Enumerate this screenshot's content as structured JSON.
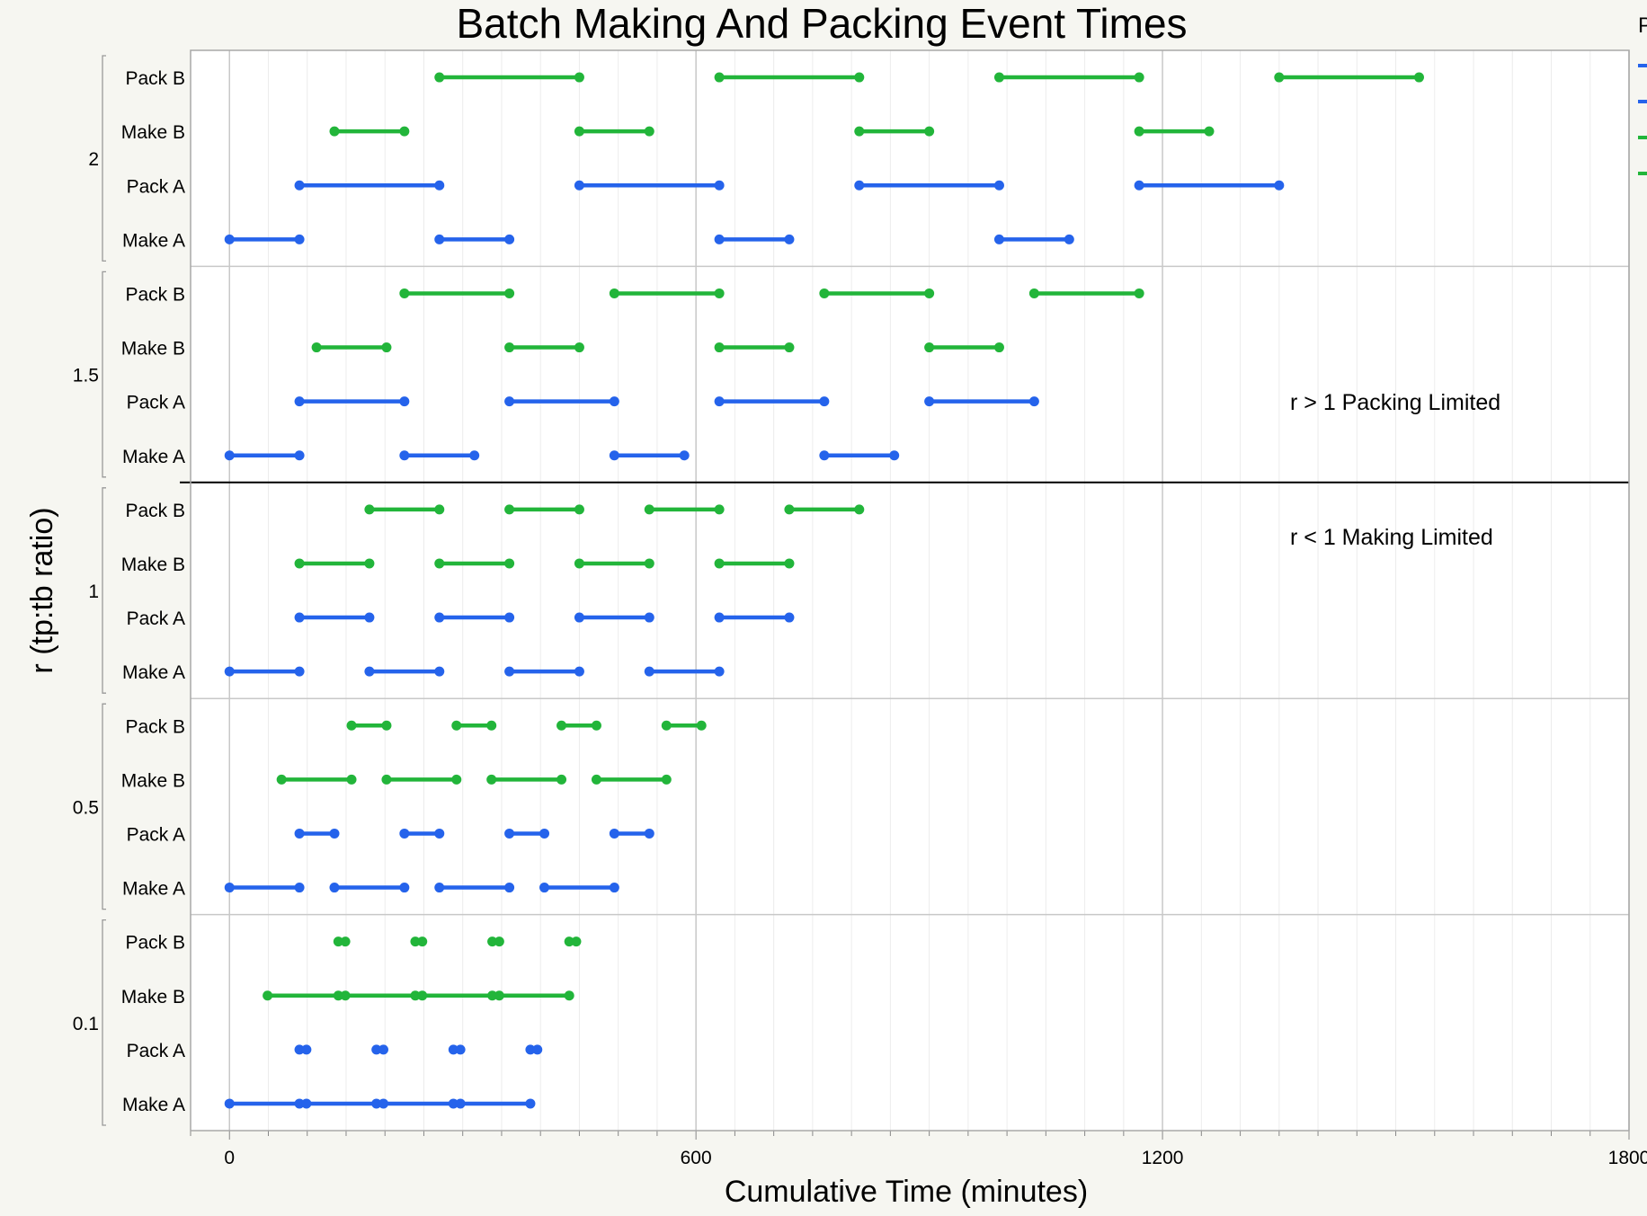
{
  "chart_data": {
    "type": "range",
    "title": "Batch Making And Packing Event Times",
    "xlabel": "Cumulative Time (minutes)",
    "ylabel": "r (tp:tb ratio)",
    "xlim": [
      -50,
      1800
    ],
    "x_ticks": [
      0,
      600,
      1200,
      1800
    ],
    "grid": true,
    "legend": "right (partially cut off)",
    "legend_title_fragment": "P",
    "colors": {
      "A": "#2563eb",
      "B": "#22b53a"
    },
    "row_labels": [
      "Pack B",
      "Make B",
      "Pack A",
      "Make A"
    ],
    "annotations": [
      "r > 1 Packing Limited",
      "r < 1 Making Limited"
    ],
    "panels": [
      {
        "r_label": "2",
        "rows": {
          "Pack B": [
            [
              270,
              450
            ],
            [
              630,
              810
            ],
            [
              990,
              1170
            ],
            [
              1350,
              1530
            ]
          ],
          "Make B": [
            [
              135,
              225
            ],
            [
              450,
              540
            ],
            [
              810,
              900
            ],
            [
              1170,
              1260
            ]
          ],
          "Pack A": [
            [
              90,
              270
            ],
            [
              450,
              630
            ],
            [
              810,
              990
            ],
            [
              1170,
              1350
            ]
          ],
          "Make A": [
            [
              0,
              90
            ],
            [
              270,
              360
            ],
            [
              630,
              720
            ],
            [
              990,
              1080
            ]
          ]
        }
      },
      {
        "r_label": "1.5",
        "rows": {
          "Pack B": [
            [
              225,
              360
            ],
            [
              495,
              630
            ],
            [
              765,
              900
            ],
            [
              1035,
              1170
            ]
          ],
          "Make B": [
            [
              112,
              202
            ],
            [
              360,
              450
            ],
            [
              630,
              720
            ],
            [
              900,
              990
            ]
          ],
          "Pack A": [
            [
              90,
              225
            ],
            [
              360,
              495
            ],
            [
              630,
              765
            ],
            [
              900,
              1035
            ]
          ],
          "Make A": [
            [
              0,
              90
            ],
            [
              225,
              315
            ],
            [
              495,
              585
            ],
            [
              765,
              855
            ]
          ]
        }
      },
      {
        "r_label": "1",
        "rows": {
          "Pack B": [
            [
              180,
              270
            ],
            [
              360,
              450
            ],
            [
              540,
              630
            ],
            [
              720,
              810
            ]
          ],
          "Make B": [
            [
              90,
              180
            ],
            [
              270,
              360
            ],
            [
              450,
              540
            ],
            [
              630,
              720
            ]
          ],
          "Pack A": [
            [
              90,
              180
            ],
            [
              270,
              360
            ],
            [
              450,
              540
            ],
            [
              630,
              720
            ]
          ],
          "Make A": [
            [
              0,
              90
            ],
            [
              180,
              270
            ],
            [
              360,
              450
            ],
            [
              540,
              630
            ]
          ]
        }
      },
      {
        "r_label": "0.5",
        "rows": {
          "Pack B": [
            [
              157,
              202
            ],
            [
              292,
              337
            ],
            [
              427,
              472
            ],
            [
              562,
              607
            ]
          ],
          "Make B": [
            [
              67,
              157
            ],
            [
              202,
              292
            ],
            [
              337,
              427
            ],
            [
              472,
              562
            ]
          ],
          "Pack A": [
            [
              90,
              135
            ],
            [
              225,
              270
            ],
            [
              360,
              405
            ],
            [
              495,
              540
            ]
          ],
          "Make A": [
            [
              0,
              90
            ],
            [
              135,
              225
            ],
            [
              270,
              360
            ],
            [
              405,
              495
            ]
          ]
        }
      },
      {
        "r_label": "0.1",
        "rows": {
          "Pack B": [
            [
              140,
              149
            ],
            [
              239,
              248
            ],
            [
              338,
              347
            ],
            [
              437,
              446
            ]
          ],
          "Make B": [
            [
              49,
              437
            ]
          ],
          "Make B_points": [
            49,
            140,
            149,
            239,
            248,
            338,
            347,
            437
          ],
          "Pack A": [
            [
              90,
              99
            ],
            [
              189,
              198
            ],
            [
              288,
              297
            ],
            [
              387,
              396
            ]
          ],
          "Make A": [
            [
              0,
              387
            ]
          ],
          "Make A_points": [
            0,
            90,
            99,
            189,
            198,
            288,
            297,
            387
          ]
        }
      }
    ]
  }
}
